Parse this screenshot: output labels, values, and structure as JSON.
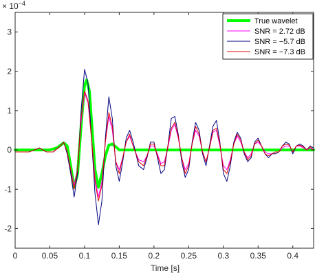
{
  "chart_data": {
    "type": "line",
    "title": "",
    "xlabel": "Time [s]",
    "ylabel": "",
    "exponent_label": "× 10^-4",
    "exponent_base": "× 10",
    "exponent_power": "−4",
    "xlim": [
      0,
      0.43
    ],
    "ylim": [
      -2.5,
      3.5
    ],
    "y_display_scale": 10000,
    "xticks": [
      0,
      0.05,
      0.1,
      0.15,
      0.2,
      0.25,
      0.3,
      0.35,
      0.4
    ],
    "xtick_labels": [
      "0",
      "0.05",
      "0.1",
      "0.15",
      "0.2",
      "0.25",
      "0.3",
      "0.35",
      "0.4"
    ],
    "yticks": [
      -2,
      -1,
      0,
      1,
      2,
      3
    ],
    "ytick_labels": [
      "-2",
      "-1",
      "0",
      "1",
      "2",
      "3"
    ],
    "grid": false,
    "legend_position": "top-right",
    "series": [
      {
        "name": "True wavelet",
        "color": "#00ff00",
        "width": "thick",
        "x": [
          0,
          0.05,
          0.06,
          0.07,
          0.075,
          0.08,
          0.085,
          0.09,
          0.095,
          0.1,
          0.103,
          0.107,
          0.11,
          0.115,
          0.12,
          0.125,
          0.13,
          0.135,
          0.14,
          0.145,
          0.15,
          0.16,
          0.43
        ],
        "y": [
          0,
          0,
          5e-06,
          1.8e-05,
          1e-05,
          -4e-05,
          -9.5e-05,
          -6e-05,
          6e-05,
          0.000165,
          0.000178,
          0.00015,
          7.5e-05,
          -5e-05,
          -9.5e-05,
          -6e-05,
          -1.5e-05,
          1.2e-05,
          1.5e-05,
          8e-06,
          0,
          0,
          0
        ]
      },
      {
        "name": "SNR = 2.72 dB",
        "color": "#ff00ff",
        "width": "thin",
        "x": [
          0,
          0.02,
          0.035,
          0.045,
          0.055,
          0.065,
          0.07,
          0.075,
          0.08,
          0.085,
          0.09,
          0.095,
          0.1,
          0.105,
          0.11,
          0.115,
          0.12,
          0.125,
          0.13,
          0.135,
          0.14,
          0.145,
          0.15,
          0.155,
          0.16,
          0.165,
          0.17,
          0.178,
          0.185,
          0.19,
          0.195,
          0.2,
          0.205,
          0.21,
          0.215,
          0.22,
          0.225,
          0.23,
          0.235,
          0.24,
          0.245,
          0.25,
          0.255,
          0.26,
          0.265,
          0.27,
          0.275,
          0.28,
          0.285,
          0.29,
          0.295,
          0.3,
          0.305,
          0.31,
          0.315,
          0.32,
          0.325,
          0.33,
          0.335,
          0.34,
          0.345,
          0.35,
          0.355,
          0.36,
          0.365,
          0.37,
          0.375,
          0.38,
          0.385,
          0.39,
          0.395,
          0.4,
          0.405,
          0.41,
          0.415,
          0.42,
          0.425,
          0.43
        ],
        "y": [
          -5e-06,
          -5e-06,
          5e-06,
          -5e-06,
          -5e-06,
          1e-05,
          2e-05,
          -5e-06,
          -5e-05,
          -9e-05,
          -5e-05,
          7e-05,
          0.000145,
          0.00012,
          3e-05,
          -7e-05,
          -0.00012,
          -8e-05,
          2e-05,
          8.5e-05,
          5e-05,
          -3e-05,
          -5e-05,
          -2e-05,
          2e-05,
          3.5e-05,
          1e-05,
          -2.5e-05,
          -3e-05,
          -1.5e-05,
          1e-05,
          1e-05,
          -1e-05,
          -3.5e-05,
          -3e-05,
          5e-06,
          5e-05,
          6.5e-05,
          3e-05,
          -2e-05,
          -5e-05,
          -3.5e-05,
          1.5e-05,
          5e-05,
          3.5e-05,
          -5e-06,
          -3e-05,
          5e-06,
          4.5e-05,
          5e-05,
          1e-05,
          -4e-05,
          -5e-05,
          -2.5e-05,
          1.5e-05,
          3.5e-05,
          2e-05,
          -5e-06,
          -2e-05,
          -1e-05,
          1.5e-05,
          2e-05,
          1e-05,
          -5e-06,
          -1e-05,
          -1e-05,
          -5e-06,
          -5e-06,
          5e-06,
          1e-05,
          1e-05,
          -5e-06,
          1e-05,
          1e-05,
          5e-06,
          0.0,
          5e-06,
          0.0
        ]
      },
      {
        "name": "SNR = −5.7 dB",
        "color": "#000080",
        "width": "thin",
        "x": [
          0,
          0.02,
          0.035,
          0.045,
          0.055,
          0.065,
          0.07,
          0.075,
          0.08,
          0.085,
          0.09,
          0.095,
          0.1,
          0.105,
          0.11,
          0.115,
          0.12,
          0.125,
          0.13,
          0.135,
          0.14,
          0.145,
          0.15,
          0.155,
          0.16,
          0.165,
          0.17,
          0.178,
          0.185,
          0.19,
          0.195,
          0.2,
          0.205,
          0.21,
          0.215,
          0.22,
          0.225,
          0.23,
          0.235,
          0.24,
          0.245,
          0.25,
          0.255,
          0.26,
          0.265,
          0.27,
          0.275,
          0.28,
          0.285,
          0.29,
          0.295,
          0.3,
          0.305,
          0.31,
          0.315,
          0.32,
          0.325,
          0.33,
          0.335,
          0.34,
          0.345,
          0.35,
          0.355,
          0.36,
          0.365,
          0.37,
          0.375,
          0.38,
          0.385,
          0.39,
          0.395,
          0.4,
          0.405,
          0.41,
          0.415,
          0.42,
          0.425,
          0.43
        ],
        "y": [
          -5e-06,
          -5e-06,
          5e-06,
          -5e-06,
          -5e-06,
          1e-05,
          2e-05,
          -1e-05,
          -6e-05,
          -0.00012,
          -6e-05,
          0.0001,
          0.000205,
          0.00017,
          3e-05,
          -0.00011,
          -0.00019,
          -0.00013,
          3e-05,
          0.000135,
          8e-05,
          -4e-05,
          -8e-05,
          -3e-05,
          3e-05,
          5e-05,
          2e-05,
          -4e-05,
          -5e-05,
          -2e-05,
          2e-05,
          2e-05,
          -2e-05,
          -6e-05,
          -5e-05,
          1e-05,
          8e-05,
          8.5e-05,
          4e-05,
          -3e-05,
          -7e-05,
          -5e-05,
          2e-05,
          7e-05,
          5e-05,
          -1e-05,
          -4e-05,
          1e-05,
          6e-05,
          7.5e-05,
          2e-05,
          -6e-05,
          -8e-05,
          -4e-05,
          2e-05,
          4.5e-05,
          3e-05,
          -1e-05,
          -3e-05,
          -2e-05,
          2e-05,
          3e-05,
          1e-05,
          -1e-05,
          -2e-05,
          -1e-05,
          -1e-05,
          -5e-06,
          1e-05,
          2e-05,
          1.5e-05,
          -1e-05,
          1e-05,
          1.5e-05,
          1e-05,
          0.0,
          1e-05,
          5e-06
        ]
      },
      {
        "name": "SNR = −7.3 dB",
        "color": "#dd0000",
        "width": "thin",
        "x": [
          0,
          0.02,
          0.035,
          0.045,
          0.055,
          0.065,
          0.07,
          0.075,
          0.08,
          0.085,
          0.09,
          0.095,
          0.1,
          0.105,
          0.11,
          0.115,
          0.12,
          0.125,
          0.13,
          0.135,
          0.14,
          0.145,
          0.15,
          0.155,
          0.16,
          0.165,
          0.17,
          0.178,
          0.185,
          0.19,
          0.195,
          0.2,
          0.205,
          0.21,
          0.215,
          0.22,
          0.225,
          0.23,
          0.235,
          0.24,
          0.245,
          0.25,
          0.255,
          0.26,
          0.265,
          0.27,
          0.275,
          0.28,
          0.285,
          0.29,
          0.295,
          0.3,
          0.305,
          0.31,
          0.315,
          0.32,
          0.325,
          0.33,
          0.335,
          0.34,
          0.345,
          0.35,
          0.355,
          0.36,
          0.365,
          0.37,
          0.375,
          0.38,
          0.385,
          0.39,
          0.395,
          0.4,
          0.405,
          0.41,
          0.415,
          0.42,
          0.425,
          0.43
        ],
        "y": [
          -5e-06,
          -5e-06,
          5e-06,
          -5e-06,
          -5e-06,
          1e-05,
          2e-05,
          -5e-06,
          -5e-05,
          -0.0001,
          -5e-05,
          8e-05,
          0.00015,
          0.000125,
          3e-05,
          -8e-05,
          -0.00013,
          -9e-05,
          2e-05,
          9.5e-05,
          6e-05,
          -3e-05,
          -6e-05,
          -2e-05,
          2e-05,
          4e-05,
          1e-05,
          -3e-05,
          -4e-05,
          -1.5e-05,
          1.5e-05,
          1.5e-05,
          -1.5e-05,
          -4e-05,
          -4e-05,
          1e-05,
          5.5e-05,
          7e-05,
          3.5e-05,
          -2e-05,
          -6e-05,
          -4e-05,
          1.5e-05,
          6e-05,
          4e-05,
          -5e-06,
          -3e-05,
          5e-06,
          5e-05,
          5.5e-05,
          1.5e-05,
          -5e-05,
          -6e-05,
          -3e-05,
          1.5e-05,
          4e-05,
          2.5e-05,
          -5e-06,
          -2.5e-05,
          -1.5e-05,
          1.5e-05,
          2.5e-05,
          1e-05,
          -1e-05,
          -1.5e-05,
          -1e-05,
          -5e-06,
          -5e-06,
          1e-05,
          1.5e-05,
          1.2e-05,
          -5e-06,
          1e-05,
          1.2e-05,
          8e-06,
          0.0,
          8e-06,
          0.0
        ]
      }
    ]
  }
}
